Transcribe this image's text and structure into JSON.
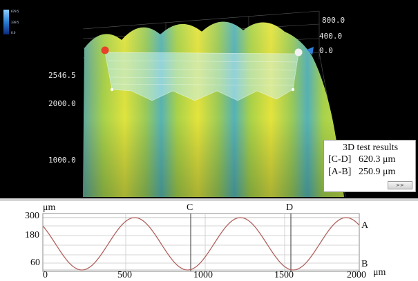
{
  "colorbar": {
    "labels": [
      "679.5",
      "339.5",
      "0.0"
    ]
  },
  "surface_view": {
    "z_axis_labels": [
      "800.0",
      "400.0",
      "0.0"
    ],
    "y_axis_labels": [
      "2546.5",
      "2000.0",
      "1000.0"
    ],
    "marker_colors": {
      "left": "#e8402a",
      "right": "#f2f2f2"
    }
  },
  "results_panel": {
    "title": "3D test results",
    "rows": [
      {
        "key": "[C-D]",
        "value": "620.3 μm"
      },
      {
        "key": "[A-B]",
        "value": "250.9 μm"
      }
    ],
    "expand_button": ">>"
  },
  "profile": {
    "y_unit": "μm",
    "x_unit": "μm",
    "y_ticks": [
      "300",
      "180",
      "60"
    ],
    "x_ticks": [
      "0",
      "500",
      "1000",
      "1500",
      "2000"
    ],
    "markers": [
      "C",
      "D",
      "A",
      "B"
    ],
    "line_color": "#b0625e"
  }
}
